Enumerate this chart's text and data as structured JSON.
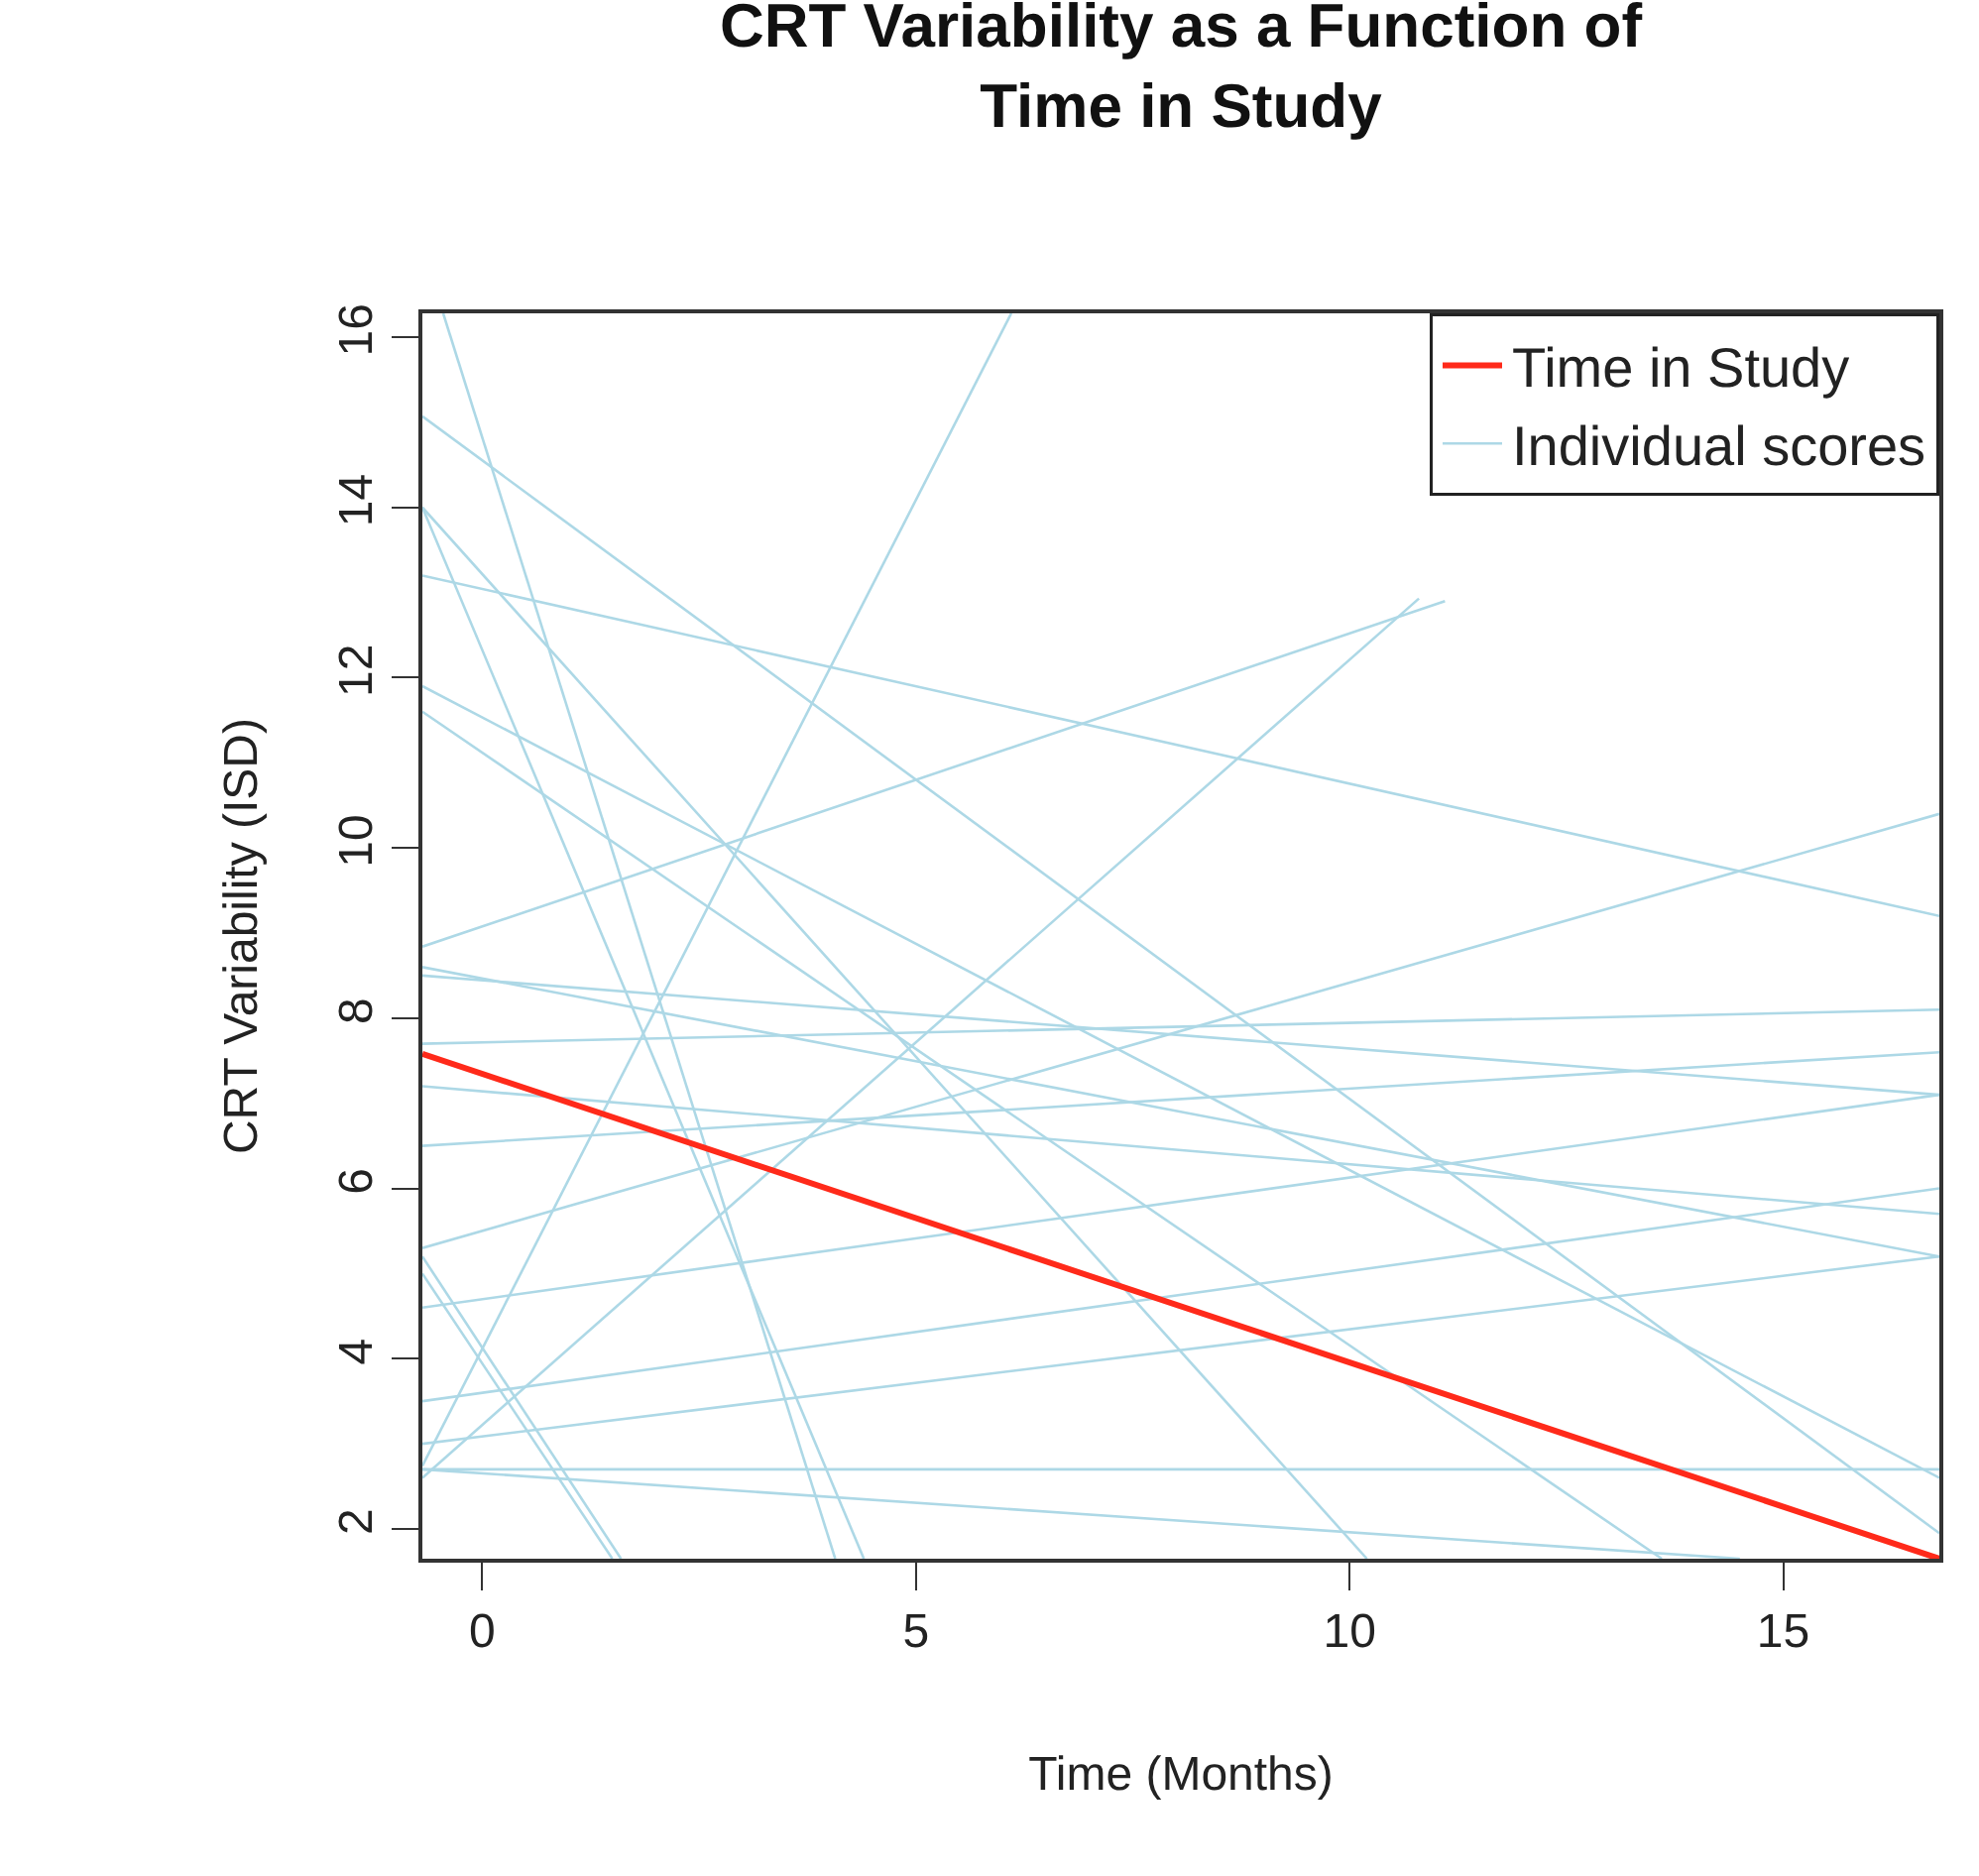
{
  "chart_data": {
    "type": "line",
    "title": "CRT Variability as a Function of Time in Study",
    "xlabel": "Time (Months)",
    "ylabel": "CRT Variability (ISD)",
    "xlim": [
      -0.69,
      16.8
    ],
    "xticks": [
      0,
      5,
      10,
      15
    ],
    "ylim": [
      1.65,
      16.28
    ],
    "yticks": [
      2,
      4,
      6,
      8,
      10,
      12,
      14,
      16
    ],
    "grid": false,
    "legend": "top right",
    "marker": "none",
    "line_style": "solid",
    "series": [
      {
        "name": "Time in Study",
        "color": "#ff2a1a",
        "x": [
          -0.69,
          16.8
        ],
        "values": [
          7.58,
          1.65
        ]
      },
      {
        "name": "Individual scores",
        "color": "#add8e6",
        "x": [
          -0.69,
          16.8
        ],
        "values": [
          15.07,
          1.95
        ]
      },
      {
        "color": "#add8e6",
        "x": [
          -0.69,
          10.2
        ],
        "values": [
          14.0,
          1.65
        ]
      },
      {
        "color": "#add8e6",
        "x": [
          -0.69,
          4.4
        ],
        "values": [
          14.0,
          1.65
        ]
      },
      {
        "color": "#add8e6",
        "x": [
          -0.45,
          4.07
        ],
        "values": [
          16.28,
          1.65
        ]
      },
      {
        "color": "#add8e6",
        "x": [
          -0.69,
          16.8
        ],
        "values": [
          13.2,
          9.2
        ]
      },
      {
        "color": "#add8e6",
        "x": [
          -0.69,
          13.6
        ],
        "values": [
          11.6,
          1.65
        ]
      },
      {
        "color": "#add8e6",
        "x": [
          -0.69,
          6.1
        ],
        "values": [
          2.74,
          16.28
        ]
      },
      {
        "color": "#add8e6",
        "x": [
          -0.69,
          11.1
        ],
        "values": [
          8.84,
          12.9
        ]
      },
      {
        "color": "#add8e6",
        "x": [
          -0.69,
          10.8
        ],
        "values": [
          2.6,
          12.93
        ]
      },
      {
        "color": "#add8e6",
        "x": [
          -0.69,
          16.8
        ],
        "values": [
          5.3,
          10.4
        ]
      },
      {
        "color": "#add8e6",
        "x": [
          -0.69,
          16.8
        ],
        "values": [
          8.6,
          5.2
        ]
      },
      {
        "color": "#add8e6",
        "x": [
          -0.69,
          16.8
        ],
        "values": [
          7.7,
          8.1
        ]
      },
      {
        "color": "#add8e6",
        "x": [
          -0.69,
          16.8
        ],
        "values": [
          8.5,
          7.1
        ]
      },
      {
        "color": "#add8e6",
        "x": [
          -0.69,
          16.8
        ],
        "values": [
          7.2,
          5.7
        ]
      },
      {
        "color": "#add8e6",
        "x": [
          -0.69,
          16.8
        ],
        "values": [
          6.5,
          7.6
        ]
      },
      {
        "color": "#add8e6",
        "x": [
          -0.69,
          16.8
        ],
        "values": [
          4.6,
          7.1
        ]
      },
      {
        "color": "#add8e6",
        "x": [
          -0.69,
          16.8
        ],
        "values": [
          3.5,
          6.0
        ]
      },
      {
        "color": "#add8e6",
        "x": [
          -0.69,
          16.8
        ],
        "values": [
          3.0,
          5.2
        ]
      },
      {
        "color": "#add8e6",
        "x": [
          -0.69,
          16.8
        ],
        "values": [
          2.7,
          2.7
        ]
      },
      {
        "color": "#add8e6",
        "x": [
          -0.69,
          14.5
        ],
        "values": [
          2.7,
          1.65
        ]
      },
      {
        "color": "#add8e6",
        "x": [
          -0.69,
          1.6
        ],
        "values": [
          5.2,
          1.65
        ]
      },
      {
        "color": "#add8e6",
        "x": [
          -0.69,
          1.5
        ],
        "values": [
          5.0,
          1.65
        ]
      },
      {
        "color": "#add8e6",
        "x": [
          -0.69,
          16.8
        ],
        "values": [
          11.9,
          2.6
        ]
      }
    ]
  }
}
